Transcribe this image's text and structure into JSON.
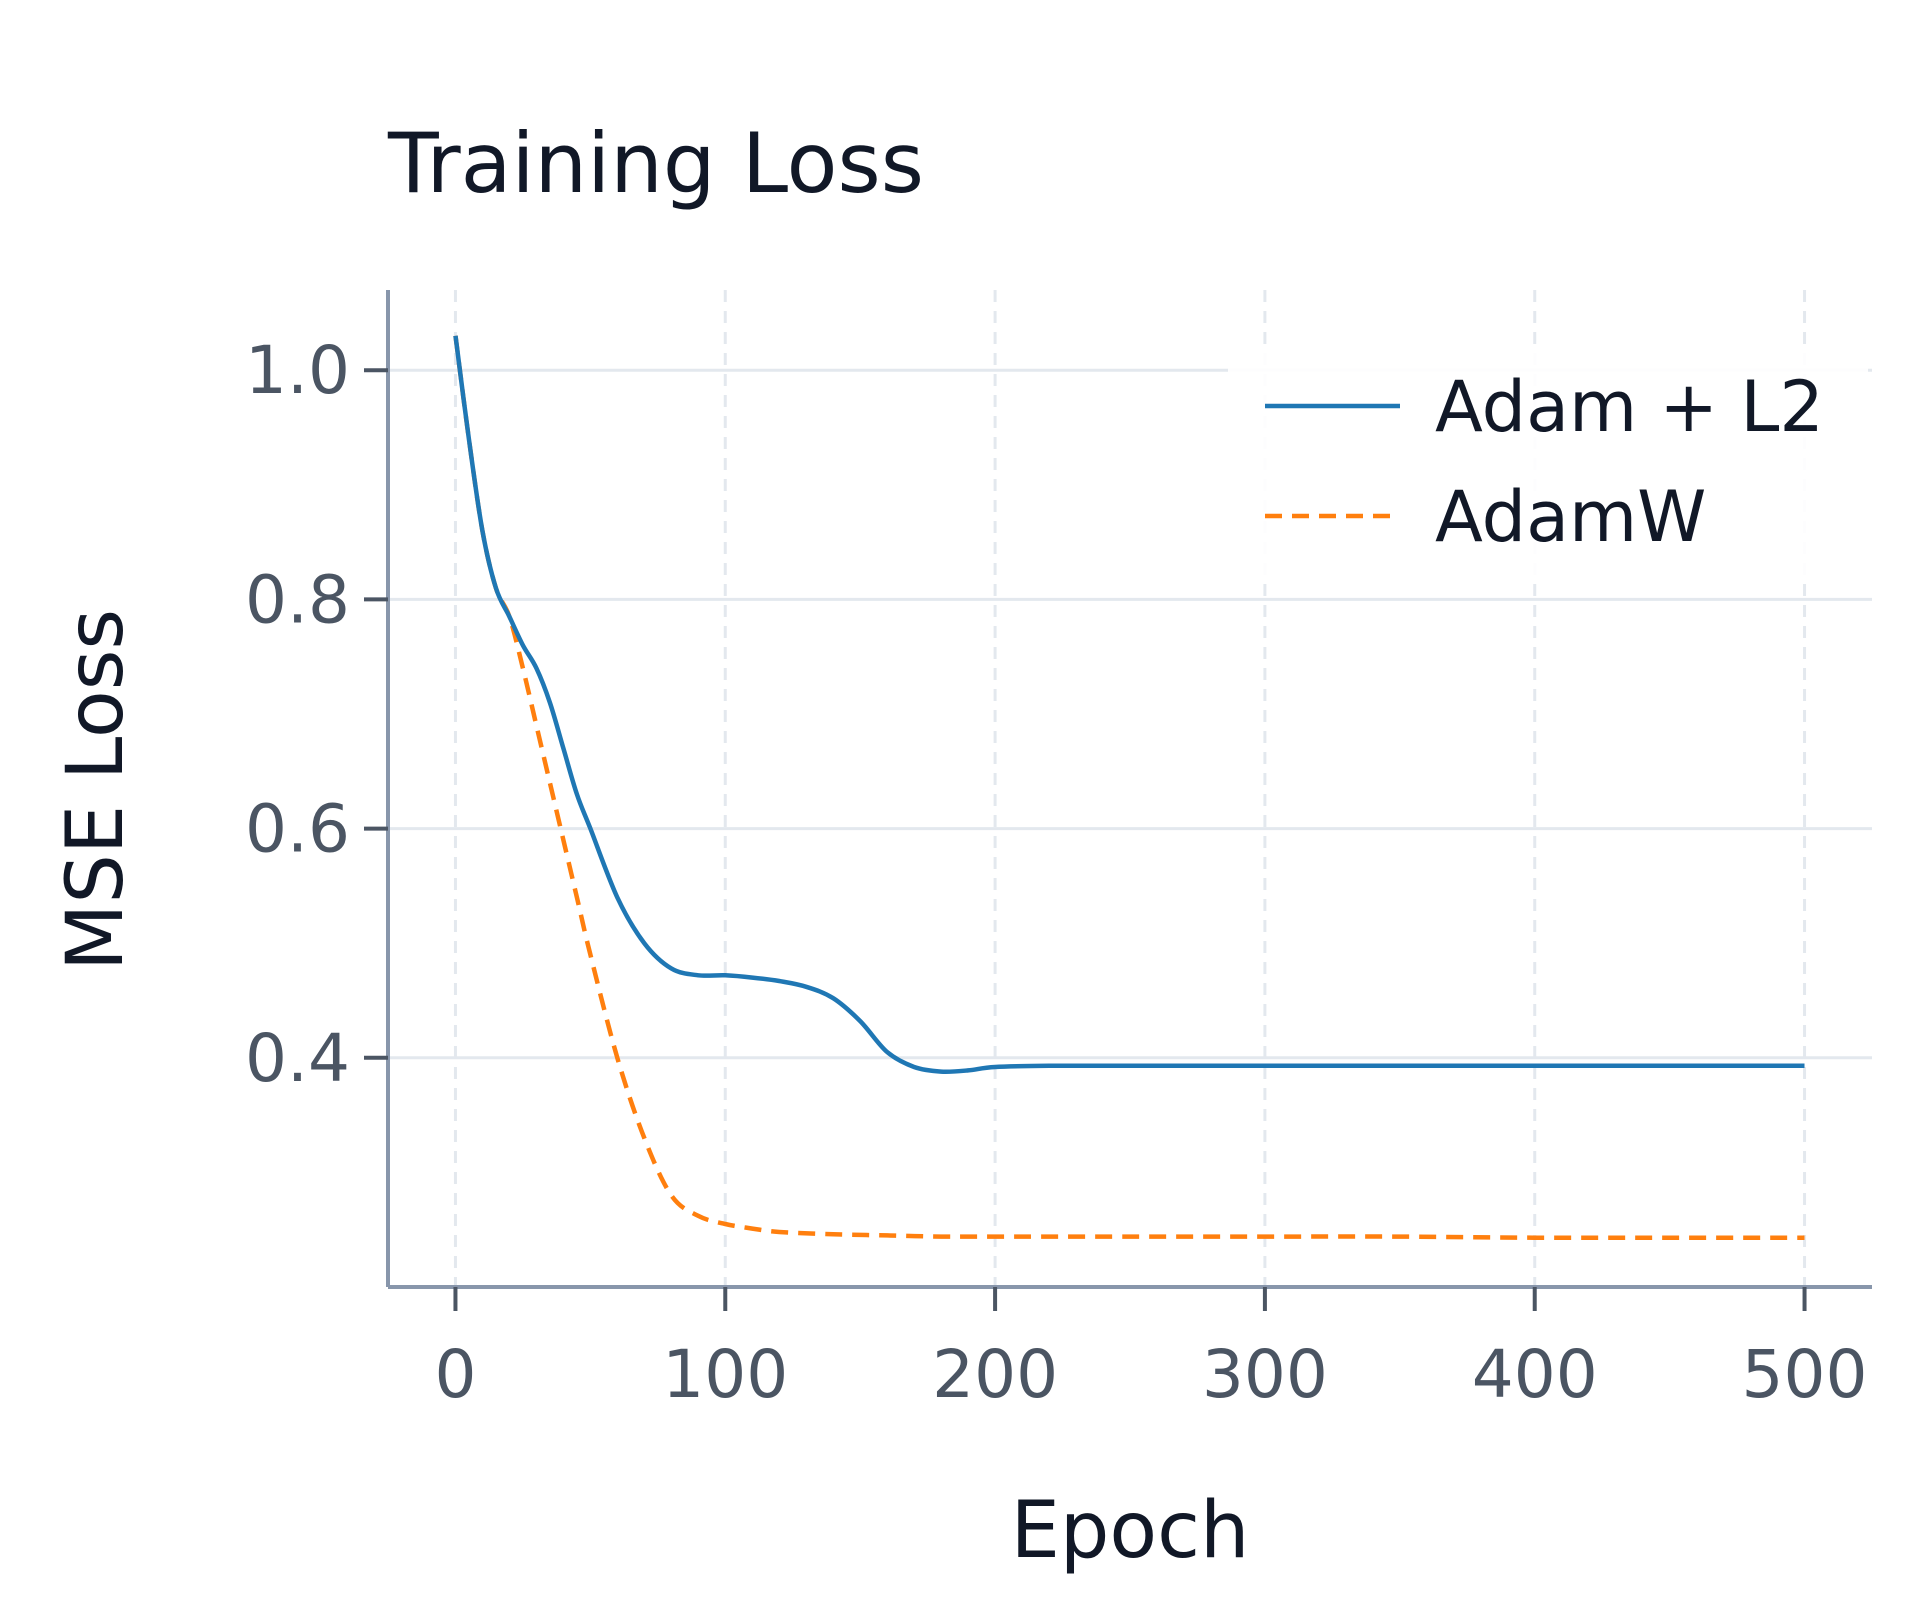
{
  "chart_data": {
    "type": "line",
    "title": "Training Loss",
    "xlabel": "Epoch",
    "ylabel": "MSE Loss",
    "xlim": [
      -25,
      525
    ],
    "ylim": [
      0.2,
      1.07
    ],
    "xticks": [
      0,
      100,
      200,
      300,
      400,
      500
    ],
    "xtick_labels": [
      "0",
      "100",
      "200",
      "300",
      "400",
      "500"
    ],
    "yticks": [
      0.4,
      0.6,
      0.8,
      1.0
    ],
    "ytick_labels": [
      "0.4",
      "0.6",
      "0.8",
      "1.0"
    ],
    "grid": true,
    "legend_position": "top-right",
    "series": [
      {
        "name": "Adam + L2",
        "color": "#1f77b4",
        "dash": "solid",
        "x": [
          0,
          5,
          10,
          15,
          20,
          25,
          30,
          35,
          40,
          45,
          50,
          60,
          70,
          80,
          90,
          100,
          110,
          120,
          130,
          140,
          150,
          160,
          170,
          180,
          190,
          200,
          220,
          250,
          300,
          350,
          400,
          450,
          500
        ],
        "y": [
          1.03,
          0.94,
          0.86,
          0.81,
          0.785,
          0.76,
          0.74,
          0.71,
          0.67,
          0.63,
          0.6,
          0.54,
          0.5,
          0.478,
          0.472,
          0.472,
          0.47,
          0.467,
          0.462,
          0.452,
          0.432,
          0.405,
          0.392,
          0.388,
          0.389,
          0.392,
          0.393,
          0.393,
          0.393,
          0.393,
          0.393,
          0.393,
          0.393
        ]
      },
      {
        "name": "AdamW",
        "color": "#ff7f0e",
        "dash": "dashed",
        "x": [
          0,
          5,
          10,
          15,
          20,
          25,
          30,
          35,
          40,
          45,
          50,
          60,
          70,
          80,
          90,
          100,
          110,
          120,
          140,
          160,
          180,
          200,
          250,
          300,
          350,
          400,
          450,
          500
        ],
        "y": [
          1.03,
          0.94,
          0.86,
          0.81,
          0.785,
          0.74,
          0.69,
          0.64,
          0.59,
          0.54,
          0.49,
          0.4,
          0.33,
          0.28,
          0.262,
          0.255,
          0.251,
          0.248,
          0.246,
          0.245,
          0.244,
          0.244,
          0.244,
          0.244,
          0.244,
          0.243,
          0.243,
          0.243
        ]
      }
    ]
  }
}
